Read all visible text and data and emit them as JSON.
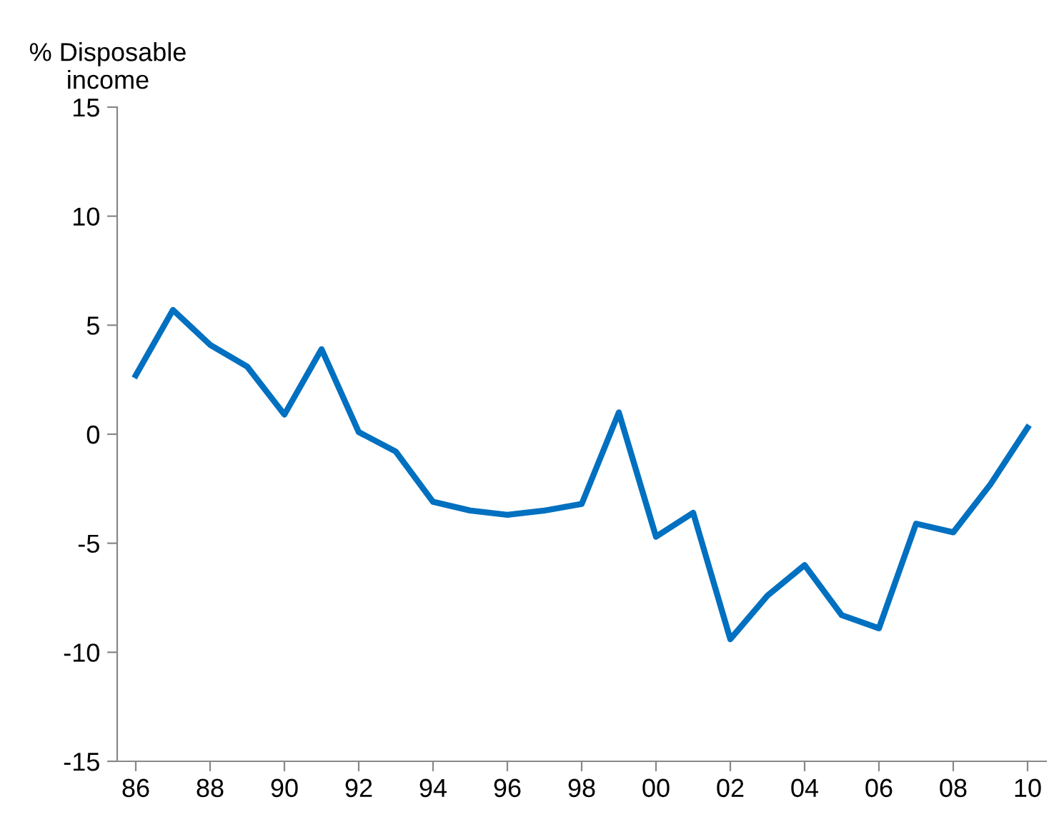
{
  "chart_data": {
    "type": "line",
    "ylabel": "% Disposable\nincome",
    "x": [
      1986,
      1987,
      1988,
      1989,
      1990,
      1991,
      1992,
      1993,
      1994,
      1995,
      1996,
      1997,
      1998,
      1999,
      2000,
      2001,
      2002,
      2003,
      2004,
      2005,
      2006,
      2007,
      2008,
      2009,
      2010
    ],
    "series": [
      {
        "color": "#0070c0",
        "values": [
          2.7,
          5.7,
          4.1,
          3.1,
          0.9,
          3.9,
          0.1,
          -0.8,
          -3.1,
          -3.5,
          -3.7,
          -3.5,
          -3.2,
          1.0,
          -4.7,
          -3.6,
          -9.4,
          -7.4,
          -6.0,
          -8.3,
          -8.9,
          -4.1,
          -4.5,
          -2.3,
          0.3
        ]
      }
    ],
    "xlim": [
      1985.5,
      2010.5
    ],
    "xticks": [
      {
        "value": 1986,
        "label": "86"
      },
      {
        "value": 1988,
        "label": "88"
      },
      {
        "value": 1990,
        "label": "90"
      },
      {
        "value": 1992,
        "label": "92"
      },
      {
        "value": 1994,
        "label": "94"
      },
      {
        "value": 1996,
        "label": "96"
      },
      {
        "value": 1998,
        "label": "98"
      },
      {
        "value": 2000,
        "label": "00"
      },
      {
        "value": 2002,
        "label": "02"
      },
      {
        "value": 2004,
        "label": "04"
      },
      {
        "value": 2006,
        "label": "06"
      },
      {
        "value": 2008,
        "label": "08"
      },
      {
        "value": 2010,
        "label": "10"
      }
    ],
    "ylim": [
      -15,
      15
    ],
    "yticks": [
      -15,
      -10,
      -5,
      0,
      5,
      10,
      15
    ],
    "grid": false,
    "legend": false,
    "marker": "none",
    "line_style": "solid"
  }
}
